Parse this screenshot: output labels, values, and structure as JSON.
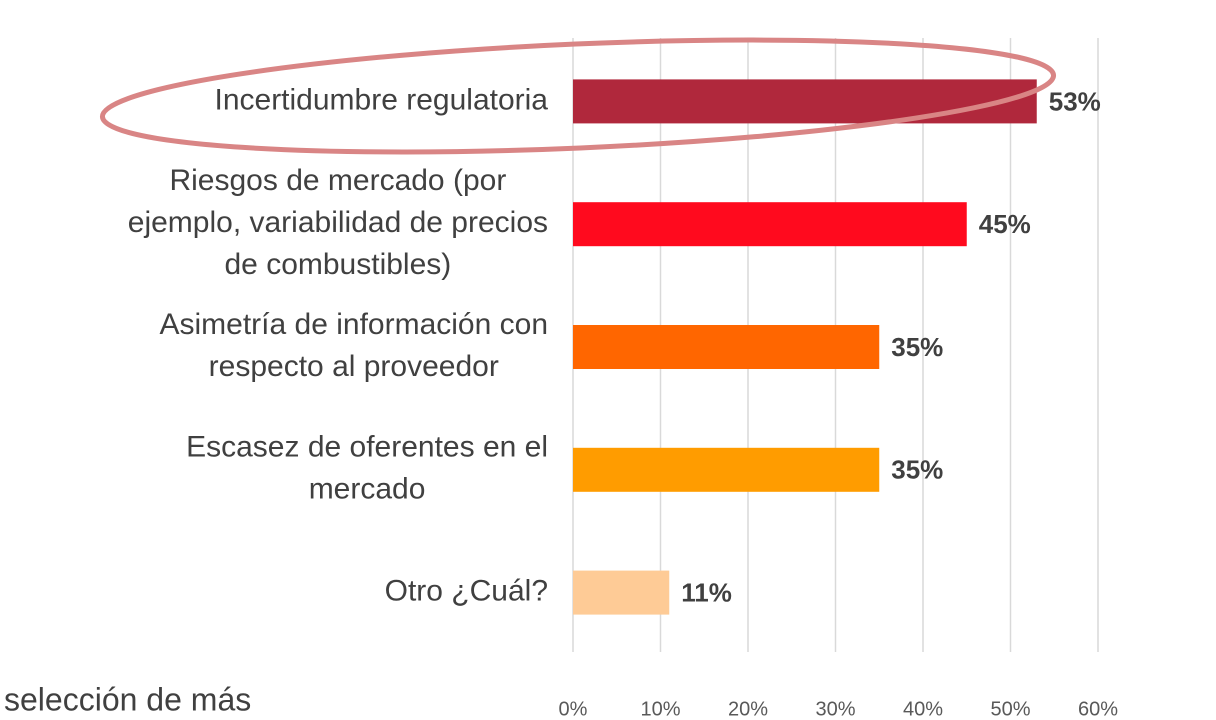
{
  "chart_data": {
    "type": "barh",
    "categories": [
      [
        "Incertidumbre regulatoria"
      ],
      [
        "Riesgos de mercado (por",
        "ejemplo, variabilidad de precios",
        "de combustibles)"
      ],
      [
        "Asimetría de información con",
        "respecto al proveedor"
      ],
      [
        "Escasez de oferentes en el",
        "mercado"
      ],
      [
        "Otro ¿Cuál?"
      ]
    ],
    "values": [
      53,
      45,
      35,
      35,
      11
    ],
    "value_labels": [
      "53%",
      "45%",
      "35%",
      "35%",
      "11%"
    ],
    "colors": [
      "#b0283c",
      "#ff0a1e",
      "#ff6600",
      "#ff9c00",
      "#fecb96"
    ],
    "xlim": [
      0,
      60
    ],
    "xticks": [
      {
        "value": 0,
        "label": "0%"
      },
      {
        "value": 10,
        "label": "10%"
      },
      {
        "value": 20,
        "label": "20%"
      },
      {
        "value": 30,
        "label": "30%"
      },
      {
        "value": 40,
        "label": "40%"
      },
      {
        "value": 50,
        "label": "50%"
      },
      {
        "value": 60,
        "label": "60%"
      }
    ],
    "grid": true,
    "footnote": "selección de más"
  }
}
